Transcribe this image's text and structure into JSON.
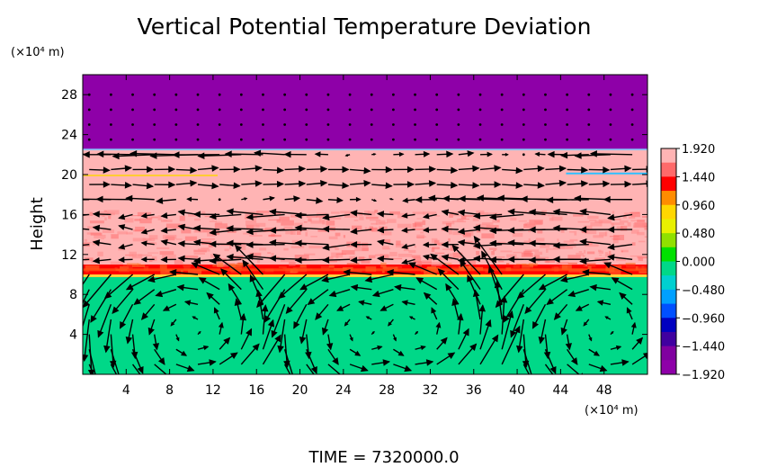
{
  "chart_data": {
    "type": "heatmap",
    "title": "Vertical Potential Temperature Deviation",
    "ylabel": "Height",
    "y_unit_label": "(×10⁴ m)",
    "x_unit_label": "(×10⁴ m)",
    "footer": "TIME  =  7320000.0",
    "xlim": [
      0,
      52
    ],
    "ylim": [
      0,
      30
    ],
    "x_ticks": [
      4,
      8,
      12,
      16,
      20,
      24,
      28,
      32,
      36,
      40,
      44,
      48
    ],
    "y_ticks": [
      4,
      8,
      12,
      16,
      20,
      24,
      28
    ],
    "layers": [
      {
        "y_from": 0,
        "y_to": 9.8,
        "value": 0.0
      },
      {
        "y_from": 9.8,
        "y_to": 11.0,
        "value": 1.44
      },
      {
        "y_from": 11.0,
        "y_to": 16.0,
        "value": 1.9
      },
      {
        "y_from": 16.0,
        "y_to": 22.5,
        "value": 1.92
      },
      {
        "y_from": 22.5,
        "y_to": 30,
        "value": -1.92
      }
    ],
    "colorbar": {
      "labels": [
        "1.920",
        "1.440",
        "0.960",
        "0.480",
        "0.000",
        "−0.480",
        "−0.960",
        "−1.440",
        "−1.920"
      ],
      "colors": [
        "#ffb4b4",
        "#ff6a6a",
        "#ff0000",
        "#ff8c00",
        "#ffd700",
        "#e8f000",
        "#90e000",
        "#00e000",
        "#00d888",
        "#00d0d0",
        "#00a0ff",
        "#0050ff",
        "#0000c0",
        "#4000a0",
        "#8000a0",
        "#8e00a8"
      ]
    },
    "grid": false,
    "legend": "colorbar right"
  }
}
